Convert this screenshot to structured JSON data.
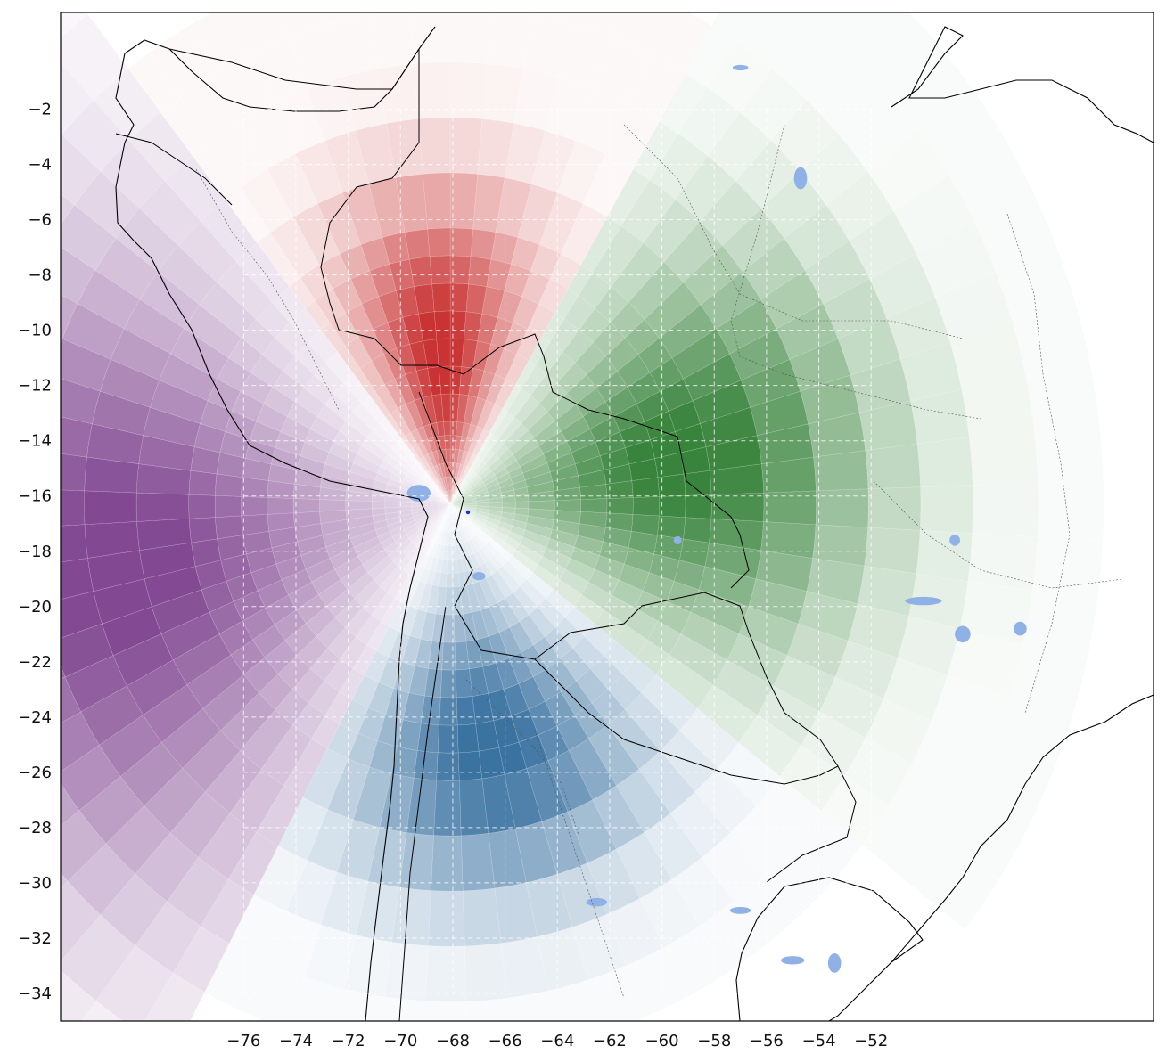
{
  "colors": {
    "north": "#c62828",
    "east": "#2e7d32",
    "south": "#2f6a9b",
    "west": "#7b3f8c",
    "water": "#8fb1e6",
    "coast": "#000000",
    "border": "#444444",
    "grid": "#ffffff",
    "origin_marker": "#1a2fd6"
  },
  "chart_data": {
    "type": "heatmap",
    "projection": "polar sectors centred on an origin point",
    "origin": {
      "lon": -68.1,
      "lat": -16.3
    },
    "xlim": [
      -83.0,
      -41.2
    ],
    "ylim": [
      -35.0,
      1.5
    ],
    "xticks": [
      "−76",
      "−74",
      "−72",
      "−70",
      "−68",
      "−66",
      "−64",
      "−62",
      "−60",
      "−58",
      "−56",
      "−54",
      "−52"
    ],
    "xtick_values": [
      -76,
      -74,
      -72,
      -70,
      -68,
      -66,
      -64,
      -62,
      -60,
      -58,
      -56,
      -54,
      -52
    ],
    "yticks": [
      "−2",
      "−4",
      "−6",
      "−8",
      "−10",
      "−12",
      "−14",
      "−16",
      "−18",
      "−20",
      "−22",
      "−24",
      "−26",
      "−28",
      "−30",
      "−32",
      "−34"
    ],
    "ytick_values": [
      -2,
      -4,
      -6,
      -8,
      -10,
      -12,
      -14,
      -16,
      -18,
      -20,
      -22,
      -24,
      -26,
      -28,
      -30,
      -32,
      -34
    ],
    "grid": true,
    "gridlines": {
      "lon": [
        -76,
        -74,
        -72,
        -70,
        -68,
        -66,
        -64,
        -62,
        -60,
        -58,
        -56,
        -54,
        -52
      ],
      "lat": [
        -2,
        -4,
        -6,
        -8,
        -10,
        -12,
        -14,
        -16,
        -18,
        -20,
        -22,
        -24,
        -26,
        -28,
        -30,
        -32,
        -34
      ]
    },
    "radial_bands": [
      0.5,
      1,
      1.5,
      2,
      2.5,
      3,
      4,
      5,
      6,
      7,
      8,
      9,
      10,
      12,
      14,
      16,
      18,
      20,
      22.5,
      25
    ],
    "sectors": [
      {
        "group": "north",
        "dir_from": 60,
        "dir_to": 128,
        "peak_dir": 94,
        "peak_r": 5.5,
        "spread_r": 5.5,
        "max_r": 20
      },
      {
        "group": "east",
        "dir_from": -38,
        "dir_to": 60,
        "peak_dir": 10,
        "peak_r": 9,
        "spread_r": 7,
        "max_r": 25
      },
      {
        "group": "south",
        "dir_from": -118,
        "dir_to": -38,
        "peak_dir": -80,
        "peak_r": 9,
        "spread_r": 5,
        "max_r": 19
      },
      {
        "group": "west",
        "dir_from": 128,
        "dir_to": 242,
        "peak_dir": 190,
        "peak_r": 13,
        "spread_r": 9,
        "max_r": 25
      }
    ],
    "lakes": [
      {
        "name": "lake",
        "lon": -69.3,
        "lat": -15.9,
        "w": 0.9,
        "h": 0.6
      },
      {
        "name": "lake",
        "lon": -67.0,
        "lat": -18.9,
        "w": 0.5,
        "h": 0.3
      },
      {
        "name": "lake",
        "lon": -54.7,
        "lat": -4.5,
        "w": 0.5,
        "h": 0.8
      },
      {
        "name": "lake",
        "lon": -57.0,
        "lat": -0.5,
        "w": 0.6,
        "h": 0.2
      },
      {
        "name": "lake",
        "lon": -50.0,
        "lat": -19.8,
        "w": 1.4,
        "h": 0.3
      },
      {
        "name": "lake",
        "lon": -48.5,
        "lat": -21.0,
        "w": 0.6,
        "h": 0.6
      },
      {
        "name": "lake",
        "lon": -46.3,
        "lat": -20.8,
        "w": 0.5,
        "h": 0.5
      },
      {
        "name": "lake",
        "lon": -48.8,
        "lat": -17.6,
        "w": 0.4,
        "h": 0.4
      },
      {
        "name": "lake",
        "lon": -57.0,
        "lat": -31.0,
        "w": 0.8,
        "h": 0.25
      },
      {
        "name": "lake",
        "lon": -62.5,
        "lat": -30.7,
        "w": 0.8,
        "h": 0.3
      },
      {
        "name": "lake",
        "lon": -55.0,
        "lat": -32.8,
        "w": 0.9,
        "h": 0.3
      },
      {
        "name": "lake",
        "lon": -53.4,
        "lat": -32.9,
        "w": 0.5,
        "h": 0.7
      },
      {
        "name": "lake",
        "lon": -59.4,
        "lat": -17.6,
        "w": 0.3,
        "h": 0.3
      }
    ]
  }
}
